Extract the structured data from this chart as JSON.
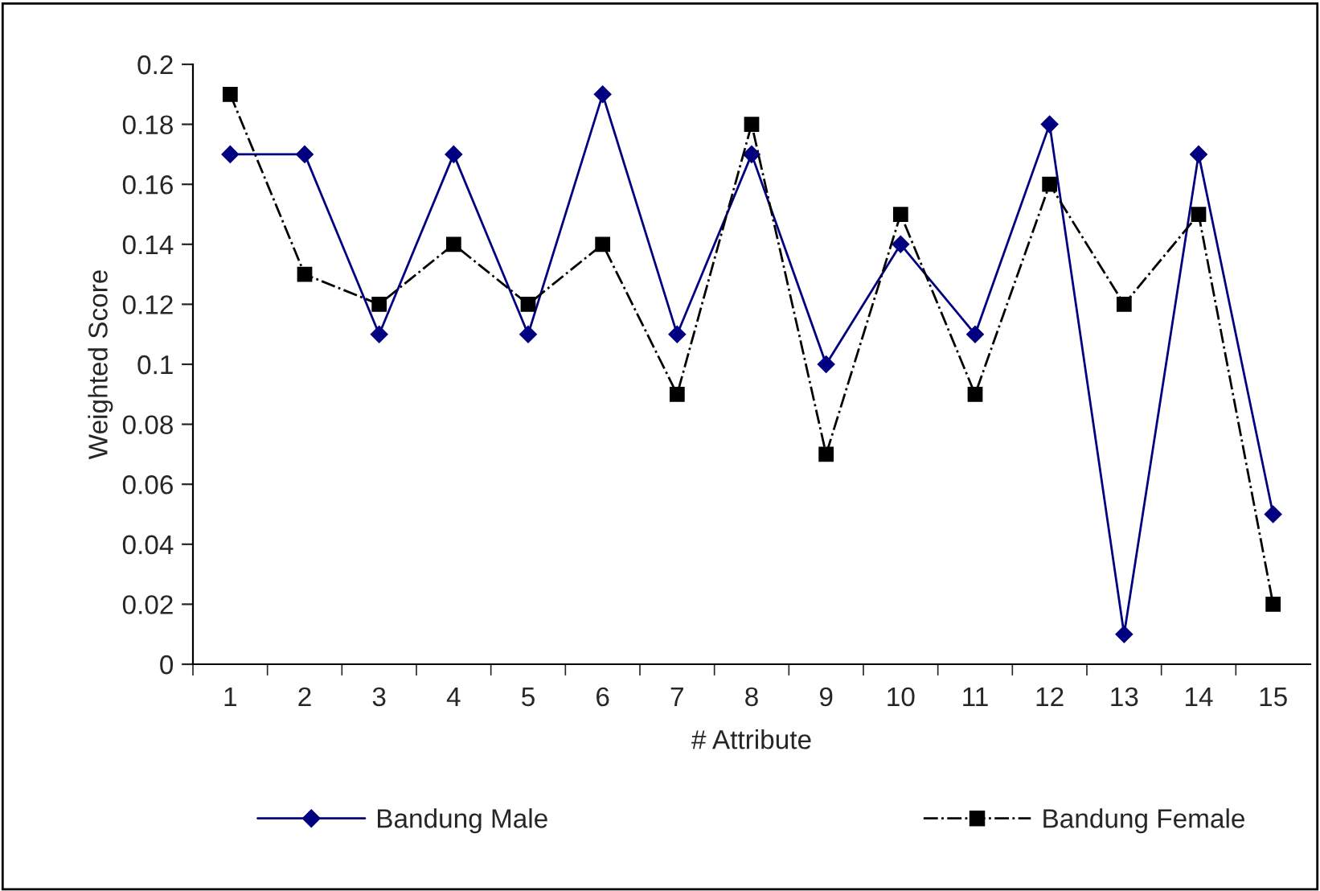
{
  "chart_data": {
    "type": "line",
    "xlabel": "# Attribute",
    "ylabel": "Weighted Score",
    "categories": [
      "1",
      "2",
      "3",
      "4",
      "5",
      "6",
      "7",
      "8",
      "9",
      "10",
      "11",
      "12",
      "13",
      "14",
      "15"
    ],
    "series": [
      {
        "name": "Bandung Male",
        "color": "#000080",
        "marker": "diamond",
        "line_style": "solid",
        "values": [
          0.17,
          0.17,
          0.11,
          0.17,
          0.11,
          0.19,
          0.11,
          0.17,
          0.1,
          0.14,
          0.11,
          0.18,
          0.01,
          0.17,
          0.05
        ]
      },
      {
        "name": "Bandung Female",
        "color": "#000000",
        "marker": "square",
        "line_style": "dashdot",
        "values": [
          0.19,
          0.13,
          0.12,
          0.14,
          0.12,
          0.14,
          0.09,
          0.18,
          0.07,
          0.15,
          0.09,
          0.16,
          0.12,
          0.15,
          0.02
        ]
      }
    ],
    "ylim": [
      0,
      0.2
    ],
    "yticks": [
      0,
      0.02,
      0.04,
      0.06,
      0.08,
      0.1,
      0.12,
      0.14,
      0.16,
      0.18,
      0.2
    ],
    "grid": false,
    "legend": "bottom"
  }
}
